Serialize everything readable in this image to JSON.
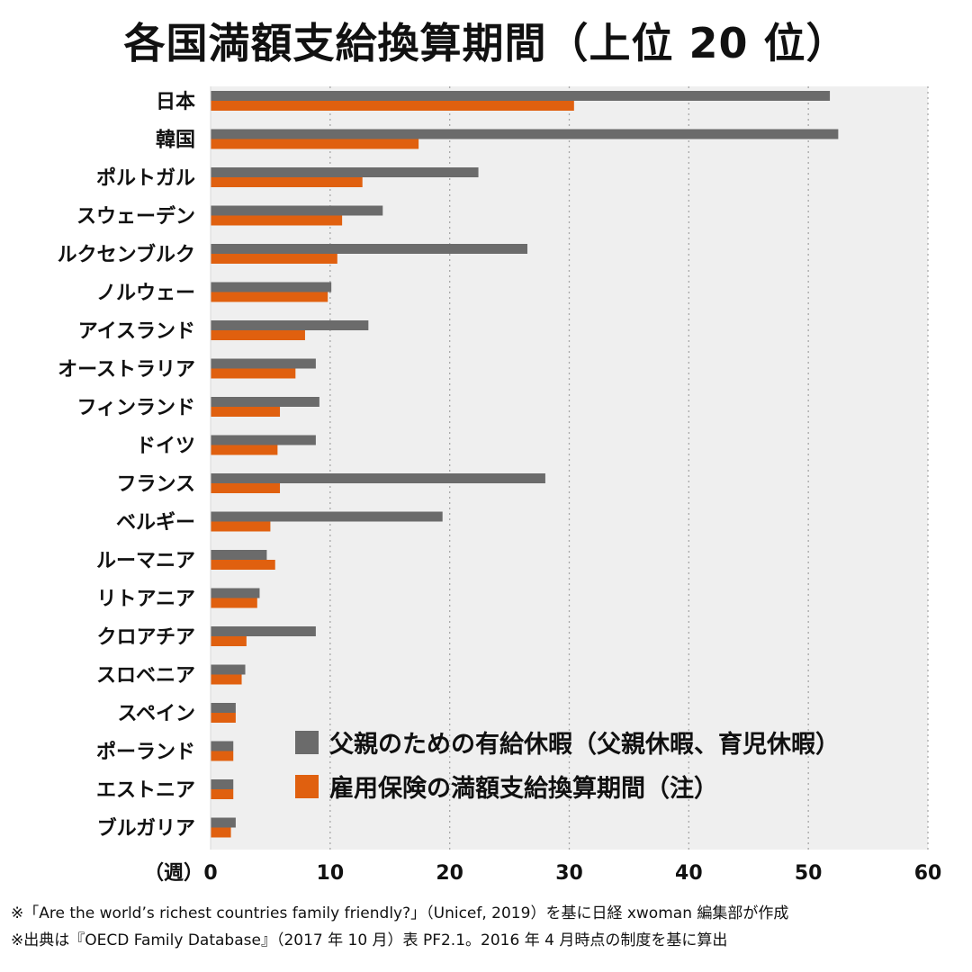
{
  "chart_data": {
    "type": "bar",
    "orientation": "horizontal",
    "title": "各国満額支給換算期間（上位 20 位）",
    "xunit": "（週）",
    "xlim": [
      0,
      60
    ],
    "xticks": [
      0,
      10,
      20,
      30,
      40,
      50,
      60
    ],
    "grid": true,
    "legend_position": "bottom-right",
    "categories": [
      "日本",
      "韓国",
      "ポルトガル",
      "スウェーデン",
      "ルクセンブルク",
      "ノルウェー",
      "アイスランド",
      "オーストラリア",
      "フィンランド",
      "ドイツ",
      "フランス",
      "ベルギー",
      "ルーマニア",
      "リトアニア",
      "クロアチア",
      "スロベニア",
      "スペイン",
      "ポーランド",
      "エストニア",
      "ブルガリア"
    ],
    "series": [
      {
        "name": "父親のための有給休暇（父親休暇、育児休暇）",
        "color": "#6b6b6b",
        "values": [
          51.8,
          52.5,
          22.4,
          14.4,
          26.5,
          10.1,
          13.2,
          8.8,
          9.1,
          8.8,
          28.0,
          19.4,
          4.7,
          4.1,
          8.8,
          2.9,
          2.1,
          1.9,
          1.9,
          2.1
        ]
      },
      {
        "name": "雇用保険の満額支給換算期間（注）",
        "color": "#e0600f",
        "values": [
          30.4,
          17.4,
          12.7,
          11.0,
          10.6,
          9.8,
          7.9,
          7.1,
          5.8,
          5.6,
          5.8,
          5.0,
          5.4,
          3.9,
          3.0,
          2.6,
          2.1,
          1.9,
          1.9,
          1.7
        ]
      }
    ]
  },
  "footnotes": [
    "※「Are the world’s richest countries family friendly?」（Unicef, 2019）を基に日経 xwoman 編集部が作成",
    "※出典は『OECD Family Database』（2017 年 10 月）表 PF2.1。2016 年 4 月時点の制度を基に算出"
  ]
}
